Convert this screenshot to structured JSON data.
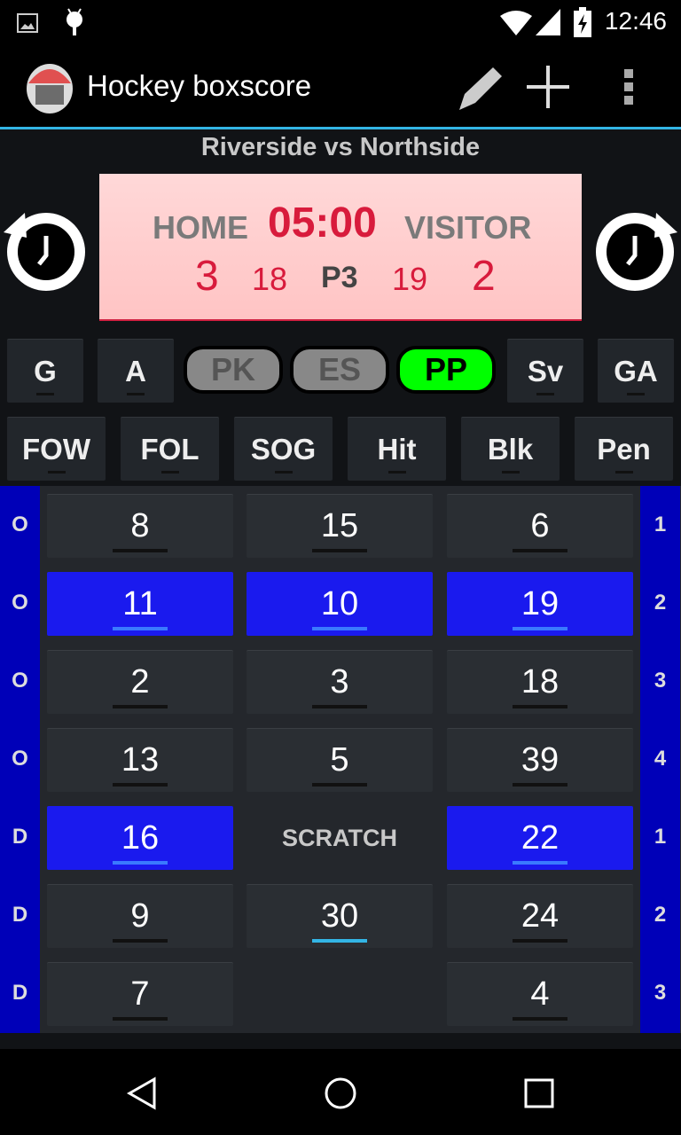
{
  "status_bar": {
    "time": "12:46",
    "icons": [
      "image-icon",
      "android-icon",
      "wifi-icon",
      "signal-icon",
      "battery-charging-icon"
    ]
  },
  "app_bar": {
    "title": "Hockey boxscore",
    "icons": [
      "app-logo-helmet",
      "pencil-icon",
      "plus-icon",
      "overflow-menu-icon"
    ]
  },
  "match": {
    "title": "Riverside vs Northside"
  },
  "scoreboard": {
    "home_label": "HOME",
    "clock": "05:00",
    "visitor_label": "VISITOR",
    "home_score": "3",
    "home_shots": "18",
    "period": "P3",
    "visitor_shots": "19",
    "visitor_score": "2"
  },
  "stat_buttons_row1": [
    "G",
    "A",
    "Sv",
    "GA"
  ],
  "strength": {
    "options": [
      "PK",
      "ES",
      "PP"
    ],
    "selected": "PP",
    "active_color": "#00ff00"
  },
  "stat_buttons_row2": [
    "FOW",
    "FOL",
    "SOG",
    "Hit",
    "Blk",
    "Pen"
  ],
  "left_labels": [
    "O",
    "O",
    "O",
    "O",
    "D",
    "D",
    "D"
  ],
  "right_labels": [
    "1",
    "2",
    "3",
    "4",
    "1",
    "2",
    "3"
  ],
  "players": [
    [
      {
        "n": "8"
      },
      {
        "n": "15"
      },
      {
        "n": "6"
      }
    ],
    [
      {
        "n": "11",
        "sel": true
      },
      {
        "n": "10",
        "sel": true
      },
      {
        "n": "19",
        "sel": true
      }
    ],
    [
      {
        "n": "2"
      },
      {
        "n": "3"
      },
      {
        "n": "18"
      }
    ],
    [
      {
        "n": "13"
      },
      {
        "n": "5"
      },
      {
        "n": "39"
      }
    ],
    [
      {
        "n": "16",
        "sel": true
      },
      {
        "n": "SCRATCH",
        "label": true
      },
      {
        "n": "22",
        "sel": true
      }
    ],
    [
      {
        "n": "9"
      },
      {
        "n": "30",
        "cyan": true
      },
      {
        "n": "24"
      }
    ],
    [
      {
        "n": "7"
      },
      null,
      {
        "n": "4"
      }
    ]
  ],
  "colors": {
    "accent": "#33b5e5",
    "selected": "#1a1aee",
    "sidebar": "#0000b8",
    "score_red": "#d81b3c"
  }
}
